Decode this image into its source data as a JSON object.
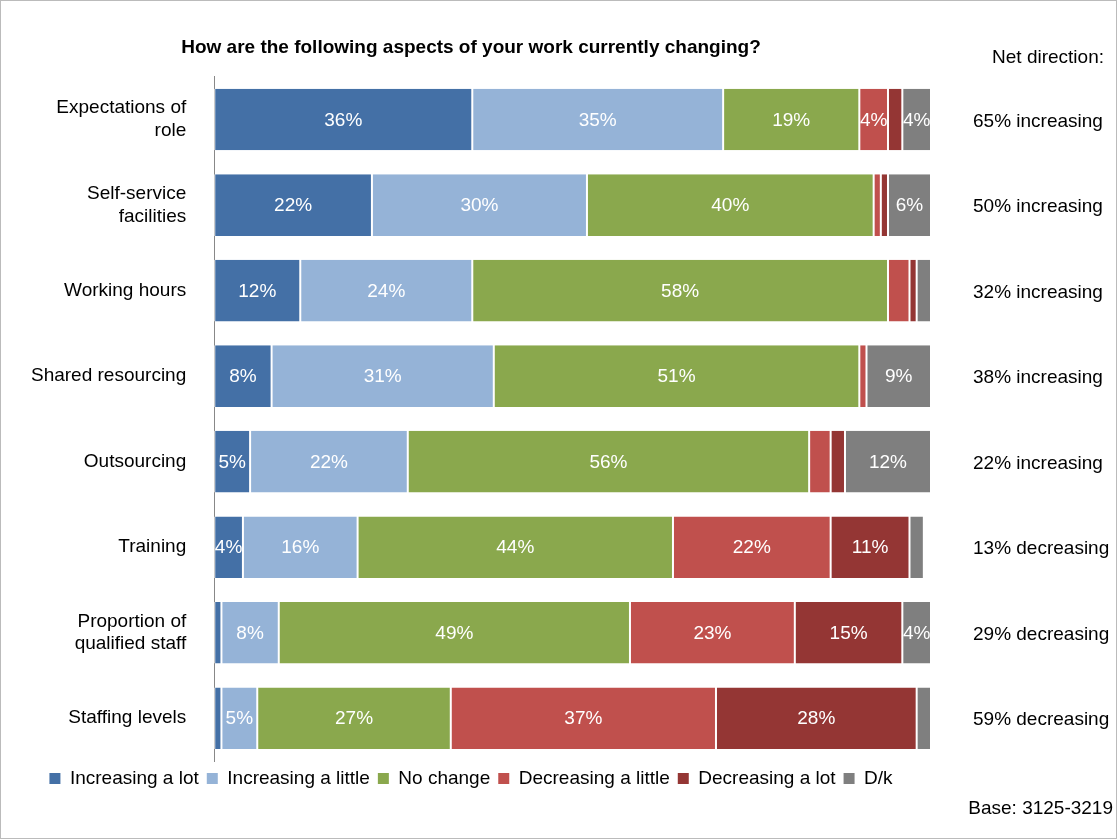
{
  "chart_data": {
    "type": "bar",
    "orientation": "horizontal",
    "stacked": true,
    "title": "How are the following aspects of your work currently changing?",
    "categories": [
      "Expectations of role",
      "Self-service facilities",
      "Working hours",
      "Shared resourcing",
      "Outsourcing",
      "Training",
      "Proportion of qualified staff",
      "Staffing levels"
    ],
    "series": [
      {
        "name": "Increasing a lot",
        "color": "#4470a6",
        "values": [
          36,
          22,
          12,
          8,
          5,
          4,
          1,
          1
        ],
        "value_labels": [
          "36%",
          "22%",
          "12%",
          "8%",
          "5%",
          "4%",
          null,
          null
        ]
      },
      {
        "name": "Increasing a little",
        "color": "#95b3d7",
        "values": [
          35,
          30,
          24,
          31,
          22,
          16,
          8,
          5
        ],
        "value_labels": [
          "35%",
          "30%",
          "24%",
          "31%",
          "22%",
          "16%",
          "8%",
          "5%"
        ]
      },
      {
        "name": "No change",
        "color": "#8aa84d",
        "values": [
          19,
          40,
          58,
          51,
          56,
          44,
          49,
          27
        ],
        "value_labels": [
          "19%",
          "40%",
          "58%",
          "51%",
          "56%",
          "44%",
          "49%",
          "27%"
        ]
      },
      {
        "name": "Decreasing a little",
        "color": "#c0504d",
        "values": [
          4,
          1,
          3,
          1,
          3,
          22,
          23,
          37
        ],
        "value_labels": [
          "4%",
          null,
          null,
          null,
          null,
          "22%",
          "23%",
          "37%"
        ]
      },
      {
        "name": "Decreasing a lot",
        "color": "#943634",
        "values": [
          2,
          1,
          1,
          0,
          2,
          11,
          15,
          28
        ],
        "value_labels": [
          null,
          null,
          null,
          null,
          null,
          "11%",
          "15%",
          "28%"
        ]
      },
      {
        "name": "D/k",
        "color": "#7f7f7f",
        "values": [
          4,
          6,
          2,
          9,
          12,
          2,
          4,
          2
        ],
        "value_labels": [
          "4%",
          "6%",
          null,
          "9%",
          "12%",
          null,
          "4%",
          null
        ]
      }
    ],
    "annotations": [
      "Net direction:",
      "65% increasing",
      "50% increasing",
      "32% increasing",
      "38% increasing",
      "22% increasing",
      "13% decreasing",
      "29% decreasing",
      "59% decreasing",
      "Base: 3125-3219"
    ],
    "legend": "bottom",
    "grid": false
  }
}
